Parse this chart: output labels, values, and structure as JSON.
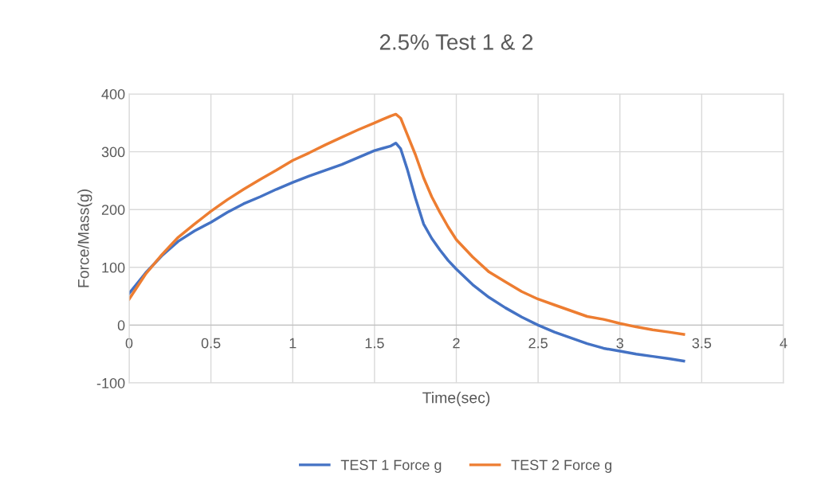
{
  "chart_data": {
    "type": "line",
    "title": "2.5% Test 1 & 2",
    "xlabel": "Time(sec)",
    "ylabel": "Force/Mass(g)",
    "xlim": [
      0,
      4
    ],
    "xticks": [
      0,
      0.5,
      1,
      1.5,
      2,
      2.5,
      3,
      3.5,
      4
    ],
    "ylim": [
      -100,
      400
    ],
    "yticks": [
      -100,
      0,
      100,
      200,
      300,
      400
    ],
    "grid": true,
    "legend": "bottom",
    "marker": "none",
    "line_style": "solid",
    "x": [
      0,
      0.1,
      0.2,
      0.3,
      0.4,
      0.5,
      0.6,
      0.7,
      0.8,
      0.9,
      1.0,
      1.1,
      1.2,
      1.3,
      1.4,
      1.5,
      1.55,
      1.6,
      1.63,
      1.66,
      1.7,
      1.75,
      1.8,
      1.85,
      1.9,
      1.95,
      2.0,
      2.1,
      2.2,
      2.3,
      2.4,
      2.5,
      2.6,
      2.7,
      2.8,
      2.9,
      3.0,
      3.1,
      3.2,
      3.3,
      3.39
    ],
    "series": [
      {
        "name": "TEST 1 Force g",
        "color": "#4472c4",
        "values": [
          55,
          90,
          120,
          145,
          163,
          178,
          195,
          210,
          222,
          235,
          247,
          258,
          268,
          278,
          290,
          302,
          306,
          310,
          315,
          305,
          270,
          220,
          175,
          150,
          130,
          112,
          97,
          70,
          48,
          30,
          14,
          0,
          -12,
          -22,
          -32,
          -40,
          -45,
          -50,
          -54,
          -58,
          -62
        ]
      },
      {
        "name": "TEST 2 Force g",
        "color": "#ed7d31",
        "values": [
          45,
          88,
          122,
          152,
          175,
          197,
          217,
          235,
          252,
          268,
          285,
          298,
          312,
          325,
          338,
          350,
          356,
          362,
          365,
          358,
          330,
          295,
          255,
          222,
          195,
          170,
          148,
          118,
          92,
          75,
          58,
          45,
          35,
          25,
          15,
          10,
          3,
          -3,
          -8,
          -12,
          -16
        ]
      }
    ]
  }
}
